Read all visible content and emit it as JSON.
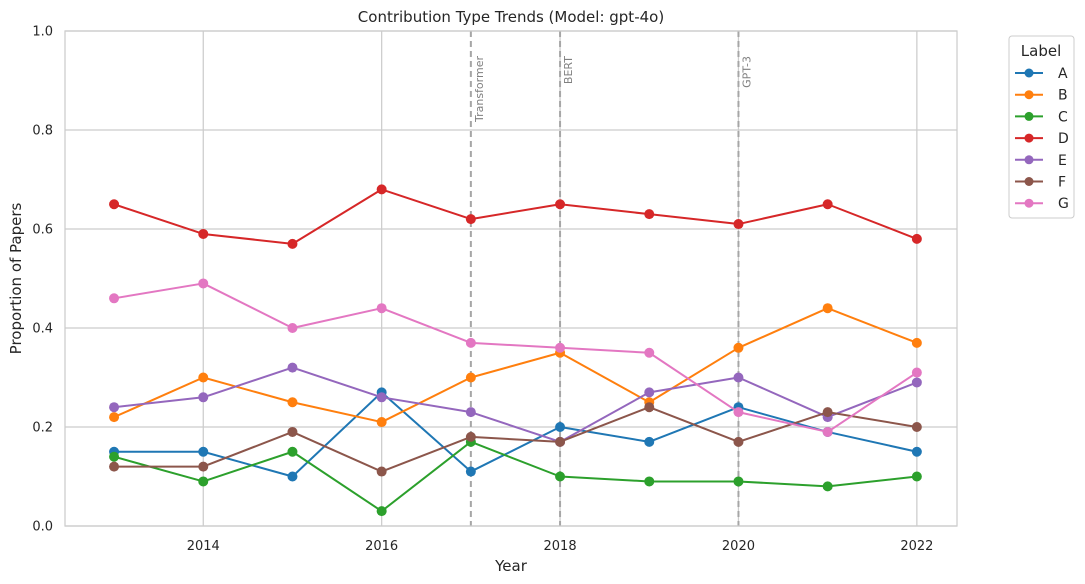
{
  "chart_data": {
    "type": "line",
    "title": "Contribution Type Trends (Model: gpt-4o)",
    "xlabel": "Year",
    "ylabel": "Proportion of Papers",
    "x": [
      2013,
      2014,
      2015,
      2016,
      2017,
      2018,
      2019,
      2020,
      2021,
      2022
    ],
    "xlim": [
      2012.45,
      2022.45
    ],
    "ylim": [
      0,
      1
    ],
    "x_ticks": [
      2014,
      2016,
      2018,
      2020,
      2022
    ],
    "y_ticks": [
      0.0,
      0.2,
      0.4,
      0.6,
      0.8,
      1.0
    ],
    "grid": true,
    "legend": {
      "title": "Label",
      "placement": "outside-top-right"
    },
    "series": [
      {
        "name": "A",
        "color": "#1f77b4",
        "values": [
          0.15,
          0.15,
          0.1,
          0.27,
          0.11,
          0.2,
          0.17,
          0.24,
          0.19,
          0.15
        ]
      },
      {
        "name": "B",
        "color": "#ff7f0e",
        "values": [
          0.22,
          0.3,
          0.25,
          0.21,
          0.3,
          0.35,
          0.25,
          0.36,
          0.44,
          0.37
        ]
      },
      {
        "name": "C",
        "color": "#2ca02c",
        "values": [
          0.14,
          0.09,
          0.15,
          0.03,
          0.17,
          0.1,
          0.09,
          0.09,
          0.08,
          0.1
        ]
      },
      {
        "name": "D",
        "color": "#d62728",
        "values": [
          0.65,
          0.59,
          0.57,
          0.68,
          0.62,
          0.65,
          0.63,
          0.61,
          0.65,
          0.58
        ]
      },
      {
        "name": "E",
        "color": "#9467bd",
        "values": [
          0.24,
          0.26,
          0.32,
          0.26,
          0.23,
          0.17,
          0.27,
          0.3,
          0.22,
          0.29
        ]
      },
      {
        "name": "F",
        "color": "#8c564b",
        "values": [
          0.12,
          0.12,
          0.19,
          0.11,
          0.18,
          0.17,
          0.24,
          0.17,
          0.23,
          0.2
        ]
      },
      {
        "name": "G",
        "color": "#e377c2",
        "values": [
          0.46,
          0.49,
          0.4,
          0.44,
          0.37,
          0.36,
          0.35,
          0.23,
          0.19,
          0.31
        ]
      }
    ],
    "events": [
      {
        "x": 2017,
        "label": "Transformer"
      },
      {
        "x": 2018,
        "label": "BERT"
      },
      {
        "x": 2020,
        "label": "GPT-3"
      }
    ]
  }
}
